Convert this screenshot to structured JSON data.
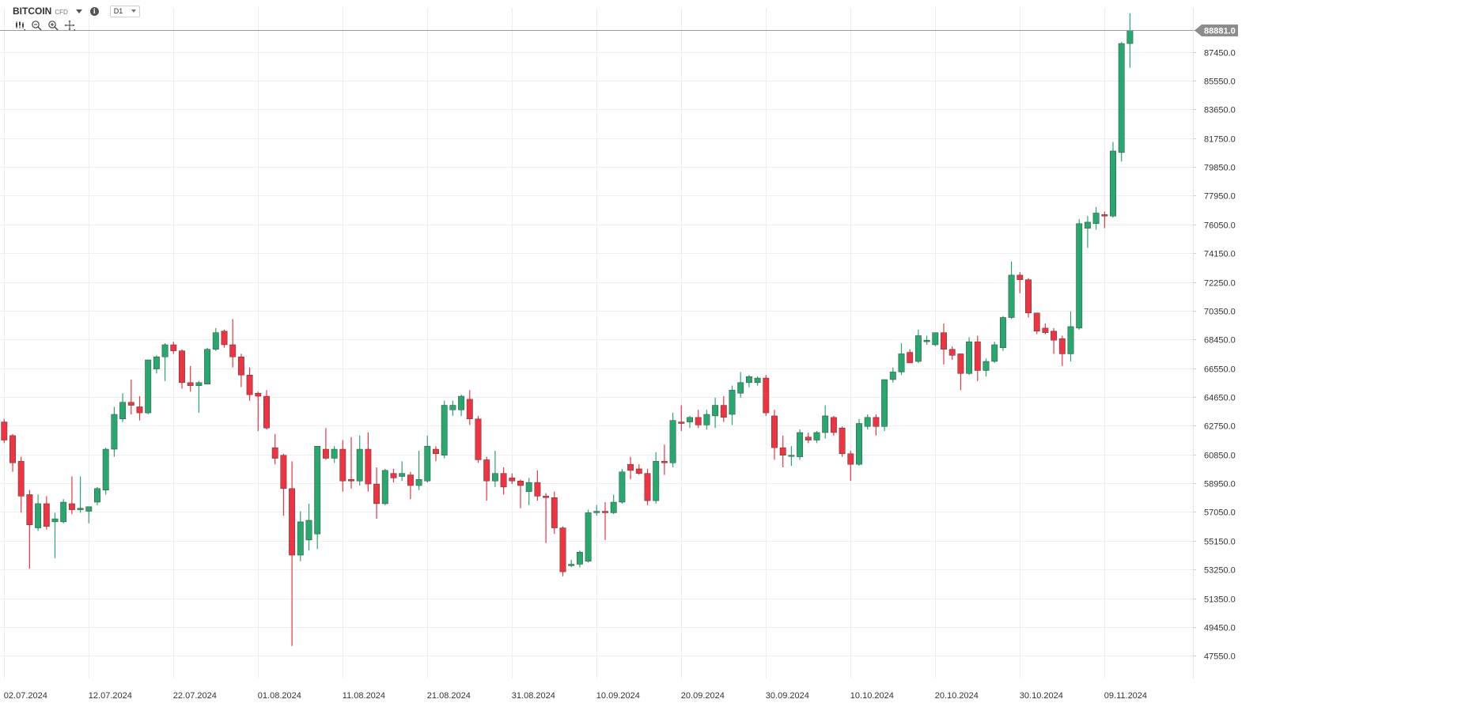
{
  "header": {
    "symbol": "BITCOIN",
    "symbol_type": "CFD",
    "timeframe": "D1",
    "icons": [
      "chevron-down-icon",
      "info-icon",
      "indicators-icon",
      "zoom-out-icon",
      "zoom-in-icon",
      "move-icon"
    ]
  },
  "colors": {
    "up": "#26a86e",
    "down": "#ef3340",
    "grid": "#eeeeee",
    "price_line": "#9a9a9a",
    "last_price_bg": "#8c8c8c"
  },
  "chart_data": {
    "type": "candlestick",
    "title": "",
    "xlabel": "",
    "ylabel": "",
    "ylim": [
      47000,
      90500
    ],
    "yticks": [
      47550,
      49450,
      51350,
      53250,
      55150,
      57050,
      58950,
      60850,
      62750,
      64650,
      66550,
      68450,
      70350,
      72250,
      74150,
      76050,
      77950,
      79850,
      81750,
      83650,
      85550,
      87450
    ],
    "ytick_labels": [
      "47550.0",
      "49450.0",
      "51350.0",
      "53250.0",
      "55150.0",
      "57050.0",
      "58950.0",
      "60850.0",
      "62750.0",
      "64650.0",
      "66550.0",
      "68450.0",
      "70350.0",
      "72250.0",
      "74150.0",
      "76050.0",
      "77950.0",
      "79850.0",
      "81750.0",
      "83650.0",
      "85550.0",
      "87450.0"
    ],
    "xticks": [
      {
        "index": 0,
        "label": "02.07.2024"
      },
      {
        "index": 10,
        "label": "12.07.2024"
      },
      {
        "index": 20,
        "label": "22.07.2024"
      },
      {
        "index": 30,
        "label": "01.08.2024"
      },
      {
        "index": 40,
        "label": "11.08.2024"
      },
      {
        "index": 50,
        "label": "21.08.2024"
      },
      {
        "index": 60,
        "label": "31.08.2024"
      },
      {
        "index": 70,
        "label": "10.09.2024"
      },
      {
        "index": 80,
        "label": "20.09.2024"
      },
      {
        "index": 90,
        "label": "30.09.2024"
      },
      {
        "index": 100,
        "label": "10.10.2024"
      },
      {
        "index": 110,
        "label": "20.10.2024"
      },
      {
        "index": 120,
        "label": "30.10.2024"
      },
      {
        "index": 130,
        "label": "09.11.2024"
      }
    ],
    "last_price": 88881,
    "last_price_label": "88881.0",
    "candles": [
      {
        "o": 63000,
        "h": 63200,
        "l": 61600,
        "c": 61800
      },
      {
        "o": 62100,
        "h": 62200,
        "l": 59700,
        "c": 60300
      },
      {
        "o": 60400,
        "h": 60700,
        "l": 57000,
        "c": 58100
      },
      {
        "o": 58200,
        "h": 58500,
        "l": 53300,
        "c": 56200
      },
      {
        "o": 56000,
        "h": 58200,
        "l": 55800,
        "c": 57600
      },
      {
        "o": 57600,
        "h": 58100,
        "l": 55900,
        "c": 56100
      },
      {
        "o": 56400,
        "h": 57000,
        "l": 54000,
        "c": 56600
      },
      {
        "o": 56400,
        "h": 57900,
        "l": 56300,
        "c": 57700
      },
      {
        "o": 57600,
        "h": 59400,
        "l": 56900,
        "c": 57200
      },
      {
        "o": 57200,
        "h": 59400,
        "l": 57000,
        "c": 57300
      },
      {
        "o": 57100,
        "h": 57400,
        "l": 56300,
        "c": 57400
      },
      {
        "o": 57700,
        "h": 58700,
        "l": 57500,
        "c": 58600
      },
      {
        "o": 58500,
        "h": 61300,
        "l": 58200,
        "c": 61200
      },
      {
        "o": 61200,
        "h": 64000,
        "l": 60700,
        "c": 63500
      },
      {
        "o": 63200,
        "h": 64900,
        "l": 63000,
        "c": 64300
      },
      {
        "o": 64300,
        "h": 65800,
        "l": 63500,
        "c": 64100
      },
      {
        "o": 64000,
        "h": 64700,
        "l": 63100,
        "c": 63600
      },
      {
        "o": 63600,
        "h": 67100,
        "l": 63500,
        "c": 67100
      },
      {
        "o": 66500,
        "h": 67400,
        "l": 66200,
        "c": 67300
      },
      {
        "o": 67300,
        "h": 68200,
        "l": 65700,
        "c": 68100
      },
      {
        "o": 68100,
        "h": 68300,
        "l": 67500,
        "c": 67700
      },
      {
        "o": 67700,
        "h": 67800,
        "l": 65200,
        "c": 65600
      },
      {
        "o": 65600,
        "h": 66700,
        "l": 65000,
        "c": 65400
      },
      {
        "o": 65400,
        "h": 65700,
        "l": 63600,
        "c": 65600
      },
      {
        "o": 65500,
        "h": 67900,
        "l": 65500,
        "c": 67800
      },
      {
        "o": 67800,
        "h": 69200,
        "l": 67700,
        "c": 68900
      },
      {
        "o": 69000,
        "h": 69100,
        "l": 67900,
        "c": 68100
      },
      {
        "o": 68100,
        "h": 69800,
        "l": 66600,
        "c": 67300
      },
      {
        "o": 67300,
        "h": 67500,
        "l": 65300,
        "c": 66100
      },
      {
        "o": 66100,
        "h": 66600,
        "l": 64400,
        "c": 64800
      },
      {
        "o": 64900,
        "h": 65000,
        "l": 62400,
        "c": 64700
      },
      {
        "o": 64700,
        "h": 65100,
        "l": 62500,
        "c": 62600
      },
      {
        "o": 61300,
        "h": 62200,
        "l": 60200,
        "c": 60600
      },
      {
        "o": 60800,
        "h": 60900,
        "l": 56800,
        "c": 58600
      },
      {
        "o": 58600,
        "h": 60400,
        "l": 48200,
        "c": 54200
      },
      {
        "o": 54200,
        "h": 57100,
        "l": 53800,
        "c": 56400
      },
      {
        "o": 55200,
        "h": 57600,
        "l": 54500,
        "c": 56500
      },
      {
        "o": 55600,
        "h": 61400,
        "l": 54600,
        "c": 61400
      },
      {
        "o": 61200,
        "h": 62600,
        "l": 60500,
        "c": 60600
      },
      {
        "o": 60600,
        "h": 61400,
        "l": 60300,
        "c": 61200
      },
      {
        "o": 61200,
        "h": 61800,
        "l": 58400,
        "c": 59100
      },
      {
        "o": 59200,
        "h": 62000,
        "l": 58600,
        "c": 59100
      },
      {
        "o": 59100,
        "h": 62100,
        "l": 58800,
        "c": 61200
      },
      {
        "o": 61200,
        "h": 62300,
        "l": 58400,
        "c": 58900
      },
      {
        "o": 58900,
        "h": 60000,
        "l": 56600,
        "c": 57600
      },
      {
        "o": 57600,
        "h": 59900,
        "l": 57500,
        "c": 59800
      },
      {
        "o": 59600,
        "h": 59900,
        "l": 59000,
        "c": 59300
      },
      {
        "o": 59400,
        "h": 60400,
        "l": 59100,
        "c": 59600
      },
      {
        "o": 59500,
        "h": 59700,
        "l": 57900,
        "c": 58800
      },
      {
        "o": 58800,
        "h": 61100,
        "l": 58500,
        "c": 59200
      },
      {
        "o": 59100,
        "h": 62100,
        "l": 59000,
        "c": 61400
      },
      {
        "o": 61200,
        "h": 61400,
        "l": 60400,
        "c": 60900
      },
      {
        "o": 60800,
        "h": 64400,
        "l": 60600,
        "c": 64100
      },
      {
        "o": 63800,
        "h": 64400,
        "l": 63400,
        "c": 64100
      },
      {
        "o": 63800,
        "h": 64800,
        "l": 63400,
        "c": 64700
      },
      {
        "o": 64500,
        "h": 65100,
        "l": 62800,
        "c": 63200
      },
      {
        "o": 63200,
        "h": 63400,
        "l": 60300,
        "c": 60500
      },
      {
        "o": 60500,
        "h": 60700,
        "l": 57800,
        "c": 59100
      },
      {
        "o": 59100,
        "h": 61100,
        "l": 58700,
        "c": 59600
      },
      {
        "o": 59600,
        "h": 60000,
        "l": 58200,
        "c": 58700
      },
      {
        "o": 59300,
        "h": 59600,
        "l": 58900,
        "c": 59100
      },
      {
        "o": 59100,
        "h": 59200,
        "l": 57300,
        "c": 58800
      },
      {
        "o": 58400,
        "h": 59300,
        "l": 57500,
        "c": 59000
      },
      {
        "o": 59000,
        "h": 59800,
        "l": 57800,
        "c": 58100
      },
      {
        "o": 58100,
        "h": 58300,
        "l": 55000,
        "c": 58000
      },
      {
        "o": 58000,
        "h": 58400,
        "l": 55600,
        "c": 56000
      },
      {
        "o": 56000,
        "h": 56100,
        "l": 52800,
        "c": 53100
      },
      {
        "o": 53500,
        "h": 53900,
        "l": 53400,
        "c": 53600
      },
      {
        "o": 53600,
        "h": 54500,
        "l": 53400,
        "c": 54400
      },
      {
        "o": 53800,
        "h": 57200,
        "l": 53700,
        "c": 57000
      },
      {
        "o": 57000,
        "h": 57500,
        "l": 56800,
        "c": 57100
      },
      {
        "o": 57100,
        "h": 57700,
        "l": 55200,
        "c": 57000
      },
      {
        "o": 57000,
        "h": 58200,
        "l": 56900,
        "c": 57700
      },
      {
        "o": 57700,
        "h": 59900,
        "l": 57600,
        "c": 59700
      },
      {
        "o": 60200,
        "h": 60700,
        "l": 59200,
        "c": 59800
      },
      {
        "o": 59900,
        "h": 60200,
        "l": 59500,
        "c": 59600
      },
      {
        "o": 59600,
        "h": 59900,
        "l": 57500,
        "c": 57800
      },
      {
        "o": 57800,
        "h": 61000,
        "l": 57600,
        "c": 60400
      },
      {
        "o": 60400,
        "h": 61500,
        "l": 59500,
        "c": 60300
      },
      {
        "o": 60300,
        "h": 63600,
        "l": 60000,
        "c": 63100
      },
      {
        "o": 63000,
        "h": 64100,
        "l": 62400,
        "c": 62900
      },
      {
        "o": 63000,
        "h": 63400,
        "l": 62600,
        "c": 63300
      },
      {
        "o": 63300,
        "h": 63800,
        "l": 62600,
        "c": 62800
      },
      {
        "o": 62800,
        "h": 63800,
        "l": 62500,
        "c": 63500
      },
      {
        "o": 63400,
        "h": 64600,
        "l": 62600,
        "c": 64100
      },
      {
        "o": 64100,
        "h": 64700,
        "l": 63000,
        "c": 63300
      },
      {
        "o": 63500,
        "h": 65400,
        "l": 62800,
        "c": 65100
      },
      {
        "o": 64900,
        "h": 66300,
        "l": 64600,
        "c": 65600
      },
      {
        "o": 65600,
        "h": 66100,
        "l": 65300,
        "c": 66000
      },
      {
        "o": 65600,
        "h": 66000,
        "l": 65400,
        "c": 65900
      },
      {
        "o": 65900,
        "h": 66100,
        "l": 63400,
        "c": 63600
      },
      {
        "o": 63400,
        "h": 63800,
        "l": 60500,
        "c": 61300
      },
      {
        "o": 61300,
        "h": 62100,
        "l": 60000,
        "c": 60800
      },
      {
        "o": 60800,
        "h": 61400,
        "l": 60100,
        "c": 60800
      },
      {
        "o": 60700,
        "h": 62500,
        "l": 60500,
        "c": 62300
      },
      {
        "o": 62000,
        "h": 62300,
        "l": 61600,
        "c": 61800
      },
      {
        "o": 61800,
        "h": 62400,
        "l": 61600,
        "c": 62300
      },
      {
        "o": 62300,
        "h": 64100,
        "l": 61900,
        "c": 63400
      },
      {
        "o": 63300,
        "h": 63400,
        "l": 62100,
        "c": 62300
      },
      {
        "o": 62600,
        "h": 62700,
        "l": 60700,
        "c": 60900
      },
      {
        "o": 60900,
        "h": 61100,
        "l": 59100,
        "c": 60200
      },
      {
        "o": 60200,
        "h": 63200,
        "l": 60100,
        "c": 62900
      },
      {
        "o": 62700,
        "h": 63500,
        "l": 62500,
        "c": 63300
      },
      {
        "o": 63300,
        "h": 63500,
        "l": 62100,
        "c": 62700
      },
      {
        "o": 62700,
        "h": 65800,
        "l": 62400,
        "c": 65800
      },
      {
        "o": 65800,
        "h": 66600,
        "l": 65600,
        "c": 66300
      },
      {
        "o": 66300,
        "h": 68200,
        "l": 66100,
        "c": 67500
      },
      {
        "o": 67600,
        "h": 67800,
        "l": 66900,
        "c": 66900
      },
      {
        "o": 67000,
        "h": 69100,
        "l": 66900,
        "c": 68700
      },
      {
        "o": 68300,
        "h": 68700,
        "l": 68100,
        "c": 68400
      },
      {
        "o": 68100,
        "h": 68900,
        "l": 68000,
        "c": 68900
      },
      {
        "o": 68900,
        "h": 69500,
        "l": 66800,
        "c": 67800
      },
      {
        "o": 67800,
        "h": 68000,
        "l": 67100,
        "c": 67400
      },
      {
        "o": 67500,
        "h": 67500,
        "l": 65100,
        "c": 66200
      },
      {
        "o": 66200,
        "h": 68600,
        "l": 66100,
        "c": 68300
      },
      {
        "o": 68300,
        "h": 68700,
        "l": 65700,
        "c": 66400
      },
      {
        "o": 66400,
        "h": 67200,
        "l": 66000,
        "c": 67000
      },
      {
        "o": 67000,
        "h": 68300,
        "l": 66900,
        "c": 68100
      },
      {
        "o": 67900,
        "h": 70000,
        "l": 67700,
        "c": 69900
      },
      {
        "o": 69900,
        "h": 73600,
        "l": 69800,
        "c": 72700
      },
      {
        "o": 72700,
        "h": 72900,
        "l": 71500,
        "c": 72400
      },
      {
        "o": 72400,
        "h": 72500,
        "l": 69900,
        "c": 70200
      },
      {
        "o": 70200,
        "h": 70200,
        "l": 68800,
        "c": 69000
      },
      {
        "o": 69200,
        "h": 69500,
        "l": 68800,
        "c": 68900
      },
      {
        "o": 69000,
        "h": 69200,
        "l": 67500,
        "c": 68400
      },
      {
        "o": 68500,
        "h": 68700,
        "l": 66700,
        "c": 67500
      },
      {
        "o": 67500,
        "h": 70300,
        "l": 67000,
        "c": 69300
      },
      {
        "o": 69200,
        "h": 76400,
        "l": 69100,
        "c": 76100
      },
      {
        "o": 75800,
        "h": 76600,
        "l": 74500,
        "c": 76200
      },
      {
        "o": 76100,
        "h": 77200,
        "l": 75700,
        "c": 76800
      },
      {
        "o": 76700,
        "h": 76900,
        "l": 75800,
        "c": 76600
      },
      {
        "o": 76600,
        "h": 81500,
        "l": 76500,
        "c": 80900
      },
      {
        "o": 80800,
        "h": 88100,
        "l": 80200,
        "c": 88000
      },
      {
        "o": 88000,
        "h": 90000,
        "l": 86400,
        "c": 88881
      }
    ]
  }
}
